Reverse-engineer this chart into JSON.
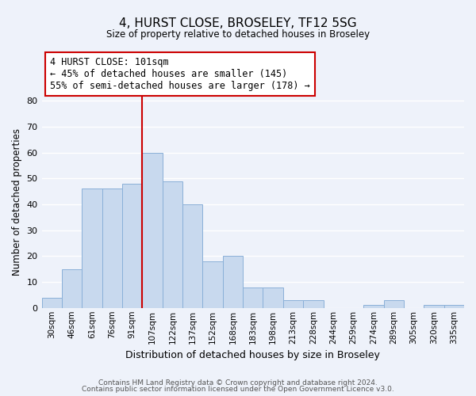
{
  "title": "4, HURST CLOSE, BROSELEY, TF12 5SG",
  "subtitle": "Size of property relative to detached houses in Broseley",
  "xlabel": "Distribution of detached houses by size in Broseley",
  "ylabel": "Number of detached properties",
  "bar_color": "#c8d9ee",
  "bar_edge_color": "#8ab0d8",
  "categories": [
    "30sqm",
    "46sqm",
    "61sqm",
    "76sqm",
    "91sqm",
    "107sqm",
    "122sqm",
    "137sqm",
    "152sqm",
    "168sqm",
    "183sqm",
    "198sqm",
    "213sqm",
    "228sqm",
    "244sqm",
    "259sqm",
    "274sqm",
    "289sqm",
    "305sqm",
    "320sqm",
    "335sqm"
  ],
  "values": [
    4,
    15,
    46,
    46,
    48,
    60,
    49,
    40,
    18,
    20,
    8,
    8,
    3,
    3,
    0,
    0,
    1,
    3,
    0,
    1,
    1
  ],
  "vline_x": 4.5,
  "vline_color": "#cc0000",
  "annotation_line1": "4 HURST CLOSE: 101sqm",
  "annotation_line2": "← 45% of detached houses are smaller (145)",
  "annotation_line3": "55% of semi-detached houses are larger (178) →",
  "annotation_box_color": "#ffffff",
  "annotation_box_edge": "#cc0000",
  "ylim": [
    0,
    82
  ],
  "yticks": [
    0,
    10,
    20,
    30,
    40,
    50,
    60,
    70,
    80
  ],
  "footer1": "Contains HM Land Registry data © Crown copyright and database right 2024.",
  "footer2": "Contains public sector information licensed under the Open Government Licence v3.0.",
  "background_color": "#eef2fa",
  "grid_color": "#ffffff"
}
